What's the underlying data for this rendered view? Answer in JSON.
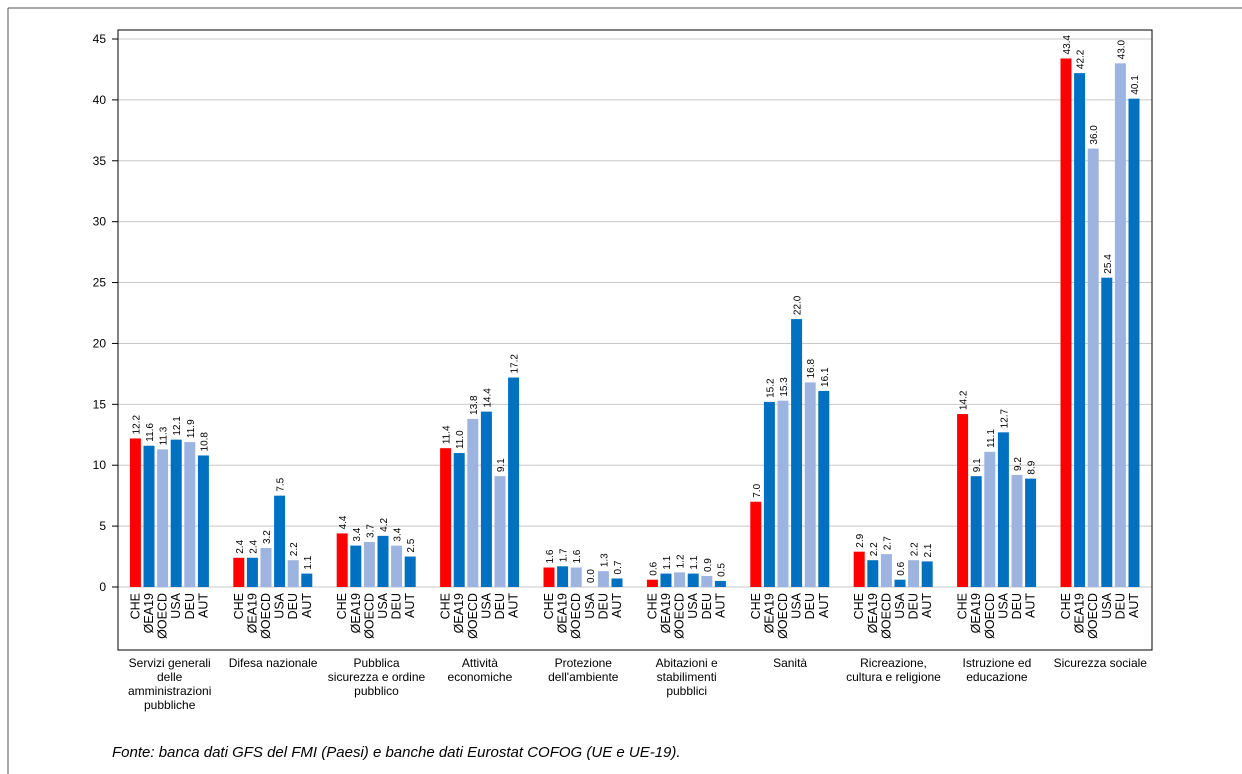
{
  "chart_data": {
    "type": "bar",
    "categories": [
      "Servizi generali delle amministrazioni pubbliche",
      "Difesa nazionale",
      "Pubblica sicurezza e ordine pubblico",
      "Attività economiche",
      "Protezione dell'ambiente",
      "Abitazioni e stabilimenti pubblici",
      "Sanità",
      "Ricreazione, cultura e religione",
      "Istruzione ed educazione",
      "Sicurezza sociale"
    ],
    "series": [
      {
        "name": "CHE",
        "color": "#ff0000",
        "values": [
          12.2,
          2.4,
          4.4,
          11.4,
          1.6,
          0.6,
          7,
          2.9,
          14.2,
          43.4
        ],
        "value_labels": [
          "12.2",
          "2.4",
          "4.4",
          "11.4",
          "1.6",
          "0.6",
          "7.0",
          "2.9",
          "14.2",
          "43.4"
        ]
      },
      {
        "name": "ØEA19",
        "color": "#0070c0",
        "values": [
          11.6,
          2.4,
          3.4,
          11,
          1.7,
          1.1,
          15.2,
          2.2,
          9.1,
          42.2
        ],
        "value_labels": [
          "11.6",
          "2.4",
          "3.4",
          "11.0",
          "1.7",
          "1.1",
          "15.2",
          "2.2",
          "9.1",
          "42.2"
        ]
      },
      {
        "name": "ØOECD",
        "color": "#9db3e0",
        "values": [
          11.3,
          3.2,
          3.7,
          13.8,
          1.6,
          1.2,
          15.3,
          2.7,
          11.1,
          36
        ],
        "value_labels": [
          "11.3",
          "3.2",
          "3.7",
          "13.8",
          "1.6",
          "1.2",
          "15.3",
          "2.7",
          "11.1",
          "36.0"
        ]
      },
      {
        "name": "USA",
        "color": "#0070c0",
        "values": [
          12.1,
          7.5,
          4.2,
          14.4,
          0,
          1.1,
          22,
          0.6,
          12.7,
          25.4
        ],
        "value_labels": [
          "12.1",
          "7.5",
          "4.2",
          "14.4",
          "0.0",
          "1.1",
          "22.0",
          "0.6",
          "12.7",
          "25.4"
        ]
      },
      {
        "name": "DEU",
        "color": "#9db3e0",
        "values": [
          11.9,
          2.2,
          3.4,
          9.1,
          1.3,
          0.9,
          16.8,
          2.2,
          9.2,
          43
        ],
        "value_labels": [
          "11.9",
          "2.2",
          "3.4",
          "9.1",
          "1.3",
          "0.9",
          "16.8",
          "2.2",
          "9.2",
          "43.0"
        ]
      },
      {
        "name": "AUT",
        "color": "#0070c0",
        "values": [
          10.8,
          1.1,
          2.5,
          17.2,
          0.7,
          0.5,
          16.1,
          2.1,
          8.9,
          40.1
        ],
        "value_labels": [
          "10.8",
          "1.1",
          "2.5",
          "17.2",
          "0.7",
          "0.5",
          "16.1",
          "2.1",
          "8.9",
          "40.1"
        ]
      }
    ],
    "ylim": [
      0,
      45
    ],
    "yticks": [
      0,
      5,
      10,
      15,
      20,
      25,
      30,
      35,
      40,
      45
    ],
    "grid": true,
    "footnote": "Fonte: banca dati GFS del FMI (Paesi) e banche dati Eurostat COFOG (UE e UE-19)."
  }
}
